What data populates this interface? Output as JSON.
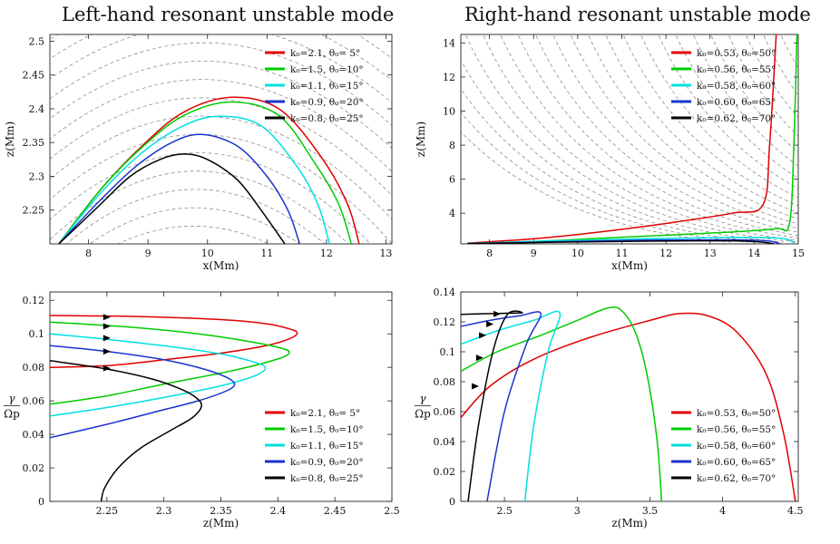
{
  "titles": {
    "left": "Left-hand resonant unstable mode",
    "right": "Right-hand resonant unstable mode"
  },
  "chart_data": [
    {
      "id": "tl",
      "type": "line",
      "xlabel": "x(Mm)",
      "ylabel": "z(Mm)",
      "xlim": [
        7.35,
        13.1
      ],
      "ylim": [
        2.2,
        2.51
      ],
      "xticks": [
        8,
        9,
        10,
        11,
        12,
        13
      ],
      "yticks": [
        2.25,
        2.3,
        2.35,
        2.4,
        2.45,
        2.5
      ],
      "legend": "top-right",
      "series": [
        {
          "name": "k₀=2.1, θ₀= 5°",
          "color": "#e00000",
          "points": [
            [
              7.5,
              2.2
            ],
            [
              8.2,
              2.28
            ],
            [
              8.9,
              2.345
            ],
            [
              9.6,
              2.395
            ],
            [
              10.4,
              2.417
            ],
            [
              11.2,
              2.4
            ],
            [
              11.9,
              2.33
            ],
            [
              12.35,
              2.26
            ],
            [
              12.55,
              2.2
            ]
          ]
        },
        {
          "name": "k₀=1.5, θ₀=10°",
          "color": "#00cc00",
          "points": [
            [
              7.5,
              2.2
            ],
            [
              8.2,
              2.28
            ],
            [
              8.9,
              2.343
            ],
            [
              9.6,
              2.39
            ],
            [
              10.4,
              2.41
            ],
            [
              11.2,
              2.39
            ],
            [
              11.8,
              2.32
            ],
            [
              12.2,
              2.26
            ],
            [
              12.42,
              2.2
            ]
          ]
        },
        {
          "name": "k₀=1.1, θ₀=15°",
          "color": "#00e0e0",
          "points": [
            [
              7.5,
              2.2
            ],
            [
              8.2,
              2.275
            ],
            [
              8.9,
              2.335
            ],
            [
              9.6,
              2.375
            ],
            [
              10.2,
              2.389
            ],
            [
              10.9,
              2.375
            ],
            [
              11.5,
              2.315
            ],
            [
              11.85,
              2.26
            ],
            [
              12.05,
              2.2
            ]
          ]
        },
        {
          "name": "k₀=0.9, θ₀=20°",
          "color": "#1a33cc",
          "points": [
            [
              7.5,
              2.2
            ],
            [
              8.2,
              2.265
            ],
            [
              8.8,
              2.315
            ],
            [
              9.4,
              2.35
            ],
            [
              9.9,
              2.362
            ],
            [
              10.5,
              2.345
            ],
            [
              11.0,
              2.3
            ],
            [
              11.35,
              2.25
            ],
            [
              11.55,
              2.2
            ]
          ]
        },
        {
          "name": "k₀=0.8, θ₀=25°",
          "color": "#000000",
          "points": [
            [
              7.5,
              2.2
            ],
            [
              8.1,
              2.25
            ],
            [
              8.7,
              2.3
            ],
            [
              9.2,
              2.325
            ],
            [
              9.6,
              2.333
            ],
            [
              10.0,
              2.325
            ],
            [
              10.5,
              2.295
            ],
            [
              10.9,
              2.25
            ],
            [
              11.3,
              2.2
            ]
          ]
        }
      ]
    },
    {
      "id": "tr",
      "type": "line",
      "xlabel": "x(Mm)",
      "ylabel": "z(Mm)",
      "xlim": [
        7.35,
        15.0
      ],
      "ylim": [
        2.2,
        14.5
      ],
      "xticks": [
        8,
        9,
        10,
        11,
        12,
        13,
        14,
        15
      ],
      "yticks": [
        4,
        6,
        8,
        10,
        12,
        14
      ],
      "legend": "top-right",
      "series": [
        {
          "name": "k₀=0.53, θ₀=50°",
          "color": "#e00000",
          "points": [
            [
              7.5,
              2.25
            ],
            [
              9.0,
              2.5
            ],
            [
              10.5,
              2.9
            ],
            [
              12.0,
              3.4
            ],
            [
              13.5,
              4.0
            ],
            [
              14.2,
              4.5
            ],
            [
              14.35,
              8.0
            ],
            [
              14.5,
              14.5
            ]
          ]
        },
        {
          "name": "k₀=0.56, θ₀=55°",
          "color": "#00cc00",
          "points": [
            [
              7.5,
              2.22
            ],
            [
              9.5,
              2.4
            ],
            [
              11.5,
              2.65
            ],
            [
              13.5,
              2.9
            ],
            [
              14.5,
              3.1
            ],
            [
              14.8,
              3.4
            ],
            [
              14.9,
              8.0
            ],
            [
              14.97,
              14.5
            ]
          ]
        },
        {
          "name": "k₀=0.58, θ₀=60°",
          "color": "#00e0e0",
          "points": [
            [
              7.5,
              2.22
            ],
            [
              9.5,
              2.38
            ],
            [
              11.5,
              2.5
            ],
            [
              13.5,
              2.58
            ],
            [
              14.5,
              2.55
            ],
            [
              14.82,
              2.4
            ],
            [
              14.92,
              2.2
            ]
          ]
        },
        {
          "name": "k₀=0.60, θ₀=65°",
          "color": "#1a33cc",
          "points": [
            [
              7.5,
              2.22
            ],
            [
              9.5,
              2.33
            ],
            [
              11.5,
              2.42
            ],
            [
              13.5,
              2.44
            ],
            [
              14.3,
              2.38
            ],
            [
              14.6,
              2.2
            ]
          ]
        },
        {
          "name": "k₀=0.62, θ₀=70°",
          "color": "#000000",
          "points": [
            [
              7.5,
              2.21
            ],
            [
              9.5,
              2.3
            ],
            [
              11.5,
              2.36
            ],
            [
              13.5,
              2.38
            ],
            [
              14.2,
              2.3
            ],
            [
              14.45,
              2.2
            ]
          ]
        }
      ]
    },
    {
      "id": "bl",
      "type": "line",
      "xlabel": "z(Mm)",
      "ylabel": "γ / Ω_p",
      "ylabel_num": "γ",
      "ylabel_den": "Ωp",
      "xlim": [
        2.2,
        2.5
      ],
      "ylim": [
        0,
        0.125
      ],
      "xticks": [
        2.25,
        2.3,
        2.35,
        2.4,
        2.45,
        2.5
      ],
      "yticks": [
        0,
        0.02,
        0.04,
        0.06,
        0.08,
        0.1,
        0.12
      ],
      "legend": "bottom-right",
      "series": [
        {
          "name": "k₀=2.1, θ₀= 5°",
          "color": "#e00000",
          "points": [
            [
              2.2,
              0.111
            ],
            [
              2.28,
              0.1103
            ],
            [
              2.35,
              0.1085
            ],
            [
              2.39,
              0.106
            ],
            [
              2.41,
              0.103
            ],
            [
              2.417,
              0.1005
            ],
            [
              2.41,
              0.097
            ],
            [
              2.39,
              0.093
            ],
            [
              2.35,
              0.0885
            ],
            [
              2.3,
              0.0845
            ],
            [
              2.25,
              0.081
            ],
            [
              2.2,
              0.08
            ]
          ]
        },
        {
          "name": "k₀=1.5, θ₀=10°",
          "color": "#00cc00",
          "points": [
            [
              2.2,
              0.107
            ],
            [
              2.27,
              0.104
            ],
            [
              2.33,
              0.1
            ],
            [
              2.37,
              0.096
            ],
            [
              2.4,
              0.092
            ],
            [
              2.41,
              0.089
            ],
            [
              2.4,
              0.085
            ],
            [
              2.36,
              0.078
            ],
            [
              2.3,
              0.07
            ],
            [
              2.25,
              0.063
            ],
            [
              2.2,
              0.058
            ]
          ]
        },
        {
          "name": "k₀=1.1, θ₀=15°",
          "color": "#00e0e0",
          "points": [
            [
              2.2,
              0.1
            ],
            [
              2.26,
              0.096
            ],
            [
              2.31,
              0.092
            ],
            [
              2.35,
              0.088
            ],
            [
              2.375,
              0.084
            ],
            [
              2.389,
              0.08
            ],
            [
              2.38,
              0.075
            ],
            [
              2.35,
              0.069
            ],
            [
              2.3,
              0.062
            ],
            [
              2.25,
              0.056
            ],
            [
              2.2,
              0.051
            ]
          ]
        },
        {
          "name": "k₀=0.9, θ₀=20°",
          "color": "#1a33cc",
          "points": [
            [
              2.2,
              0.093
            ],
            [
              2.25,
              0.0895
            ],
            [
              2.3,
              0.0845
            ],
            [
              2.335,
              0.079
            ],
            [
              2.355,
              0.074
            ],
            [
              2.362,
              0.07
            ],
            [
              2.355,
              0.066
            ],
            [
              2.33,
              0.06
            ],
            [
              2.29,
              0.053
            ],
            [
              2.25,
              0.046
            ],
            [
              2.2,
              0.038
            ]
          ]
        },
        {
          "name": "k₀=0.8, θ₀=25°",
          "color": "#000000",
          "points": [
            [
              2.2,
              0.084
            ],
            [
              2.25,
              0.079
            ],
            [
              2.29,
              0.073
            ],
            [
              2.315,
              0.067
            ],
            [
              2.328,
              0.062
            ],
            [
              2.333,
              0.057
            ],
            [
              2.325,
              0.05
            ],
            [
              2.305,
              0.042
            ],
            [
              2.28,
              0.032
            ],
            [
              2.26,
              0.02
            ],
            [
              2.248,
              0.008
            ],
            [
              2.245,
              0
            ]
          ]
        }
      ],
      "arrows": [
        {
          "color": "#000000",
          "x": 2.25,
          "y": 0.11
        },
        {
          "color": "#000000",
          "x": 2.25,
          "y": 0.1045
        },
        {
          "color": "#000000",
          "x": 2.25,
          "y": 0.0975
        },
        {
          "color": "#000000",
          "x": 2.25,
          "y": 0.0895
        },
        {
          "color": "#000000",
          "x": 2.25,
          "y": 0.0795
        }
      ]
    },
    {
      "id": "br",
      "type": "line",
      "xlabel": "z(Mm)",
      "ylabel": "γ / Ω_p",
      "ylabel_num": "γ",
      "ylabel_den": "Ωp",
      "xlim": [
        2.2,
        4.52
      ],
      "ylim": [
        0,
        0.14
      ],
      "xticks": [
        2.5,
        3,
        3.5,
        4,
        4.5
      ],
      "yticks": [
        0,
        0.02,
        0.04,
        0.06,
        0.08,
        0.1,
        0.12,
        0.14
      ],
      "legend": "bottom-right",
      "series": [
        {
          "name": "k₀=0.53, θ₀=50°",
          "color": "#e00000",
          "points": [
            [
              2.2,
              0.056
            ],
            [
              2.4,
              0.077
            ],
            [
              2.7,
              0.095
            ],
            [
              3.1,
              0.11
            ],
            [
              3.5,
              0.121
            ],
            [
              3.7,
              0.1255
            ],
            [
              3.9,
              0.124
            ],
            [
              4.1,
              0.113
            ],
            [
              4.3,
              0.085
            ],
            [
              4.42,
              0.045
            ],
            [
              4.5,
              0
            ]
          ]
        },
        {
          "name": "k₀=0.56, θ₀=55°",
          "color": "#00cc00",
          "points": [
            [
              2.2,
              0.087
            ],
            [
              2.45,
              0.1
            ],
            [
              2.75,
              0.111
            ],
            [
              3.0,
              0.121
            ],
            [
              3.2,
              0.129
            ],
            [
              3.3,
              0.128
            ],
            [
              3.4,
              0.113
            ],
            [
              3.48,
              0.085
            ],
            [
              3.55,
              0.04
            ],
            [
              3.58,
              0
            ]
          ]
        },
        {
          "name": "k₀=0.58, θ₀=60°",
          "color": "#00e0e0",
          "points": [
            [
              2.2,
              0.105
            ],
            [
              2.45,
              0.114
            ],
            [
              2.7,
              0.121
            ],
            [
              2.88,
              0.126
            ],
            [
              2.8,
              0.1
            ],
            [
              2.7,
              0.05
            ],
            [
              2.64,
              0
            ]
          ]
        },
        {
          "name": "k₀=0.60, θ₀=65°",
          "color": "#1a33cc",
          "points": [
            [
              2.2,
              0.117
            ],
            [
              2.4,
              0.121
            ],
            [
              2.6,
              0.124
            ],
            [
              2.75,
              0.1255
            ],
            [
              2.65,
              0.105
            ],
            [
              2.5,
              0.06
            ],
            [
              2.38,
              0
            ]
          ]
        },
        {
          "name": "k₀=0.62, θ₀=70°",
          "color": "#000000",
          "points": [
            [
              2.2,
              0.125
            ],
            [
              2.4,
              0.1255
            ],
            [
              2.62,
              0.126
            ],
            [
              2.52,
              0.125
            ],
            [
              2.42,
              0.1
            ],
            [
              2.32,
              0.05
            ],
            [
              2.25,
              0
            ]
          ]
        }
      ],
      "arrows": [
        {
          "color": "#000000",
          "x": 2.45,
          "y": 0.1253
        },
        {
          "color": "#000000",
          "x": 2.4,
          "y": 0.1185
        },
        {
          "color": "#000000",
          "x": 2.35,
          "y": 0.111
        },
        {
          "color": "#000000",
          "x": 2.33,
          "y": 0.096
        },
        {
          "color": "#000000",
          "x": 2.3,
          "y": 0.077
        }
      ]
    }
  ]
}
